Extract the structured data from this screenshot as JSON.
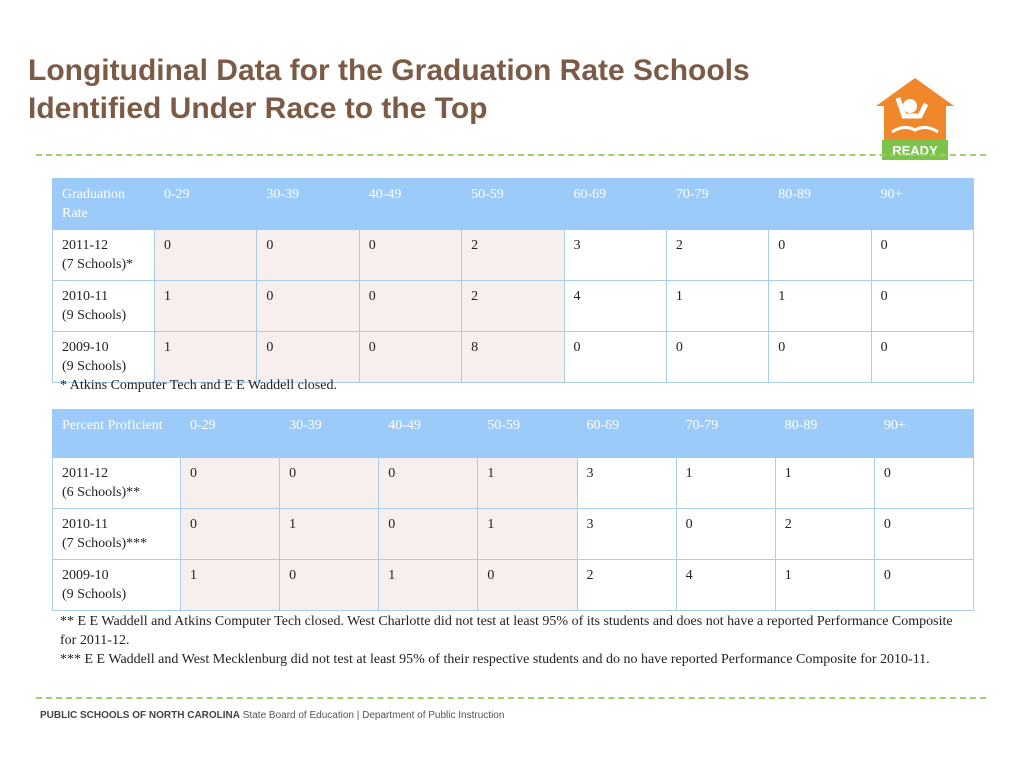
{
  "header": {
    "title_lines": [
      "Longitudinal Data for the Graduation Rate Schools",
      "Identified Under Race to the Top"
    ],
    "logo": "READY"
  },
  "tables": [
    {
      "header": [
        "Graduation Rate",
        "0-29",
        "30-39",
        "40-49",
        "50-59",
        "60-69",
        "70-79",
        "80-89",
        "90+"
      ],
      "rows": [
        {
          "label": [
            "2011-12",
            "(7 Schools)*"
          ],
          "cells": [
            0,
            0,
            0,
            2,
            3,
            2,
            0,
            0
          ]
        },
        {
          "label": [
            "2010-11",
            "(9 Schools)"
          ],
          "cells": [
            1,
            0,
            0,
            2,
            4,
            1,
            1,
            0
          ]
        },
        {
          "label": [
            "2009-10",
            "(9 Schools)"
          ],
          "cells": [
            1,
            0,
            0,
            8,
            0,
            0,
            0,
            0
          ]
        }
      ],
      "notes": [
        "* Atkins Computer Tech and E E Waddell closed."
      ]
    },
    {
      "header": [
        "Percent Proficient",
        "0-29",
        "30-39",
        "40-49",
        "50-59",
        "60-69",
        "70-79",
        "80-89",
        "90+"
      ],
      "rows": [
        {
          "label": [
            "2011-12",
            "(6 Schools)**"
          ],
          "cells": [
            0,
            0,
            0,
            1,
            3,
            1,
            1,
            0
          ]
        },
        {
          "label": [
            "2010-11",
            "(7 Schools)***"
          ],
          "cells": [
            0,
            1,
            0,
            1,
            3,
            0,
            2,
            0
          ]
        },
        {
          "label": [
            "2009-10",
            "(9 Schools)"
          ],
          "cells": [
            1,
            0,
            1,
            0,
            2,
            4,
            1,
            0
          ]
        }
      ],
      "notes": [
        "** E E Waddell and Atkins Computer Tech closed. West Charlotte did not test at least 95% of its students and does not have a reported Performance Composite for 2011-12.",
        "*** E E Waddell and West Mecklenburg did not test at least 95% of their respective students and do no have reported Performance Composite for 2010-11."
      ]
    }
  ],
  "footer": {
    "org": "PUBLIC SCHOOLS OF NORTH CAROLINA",
    "sub": "State Board of Education | Department of Public Instruction"
  }
}
